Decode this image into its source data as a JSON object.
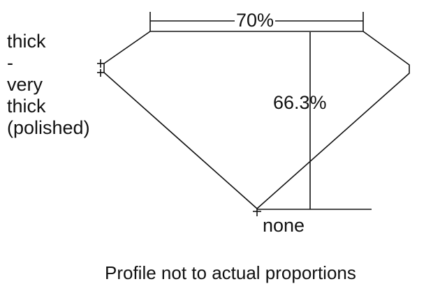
{
  "girdle_label": [
    "thick",
    "-",
    "very",
    "thick",
    "(polished)"
  ],
  "table_percent": "70%",
  "total_depth_percent": "66.3%",
  "culet_label": "none",
  "caption": "Profile not to actual proportions",
  "line_color": "#111111"
}
